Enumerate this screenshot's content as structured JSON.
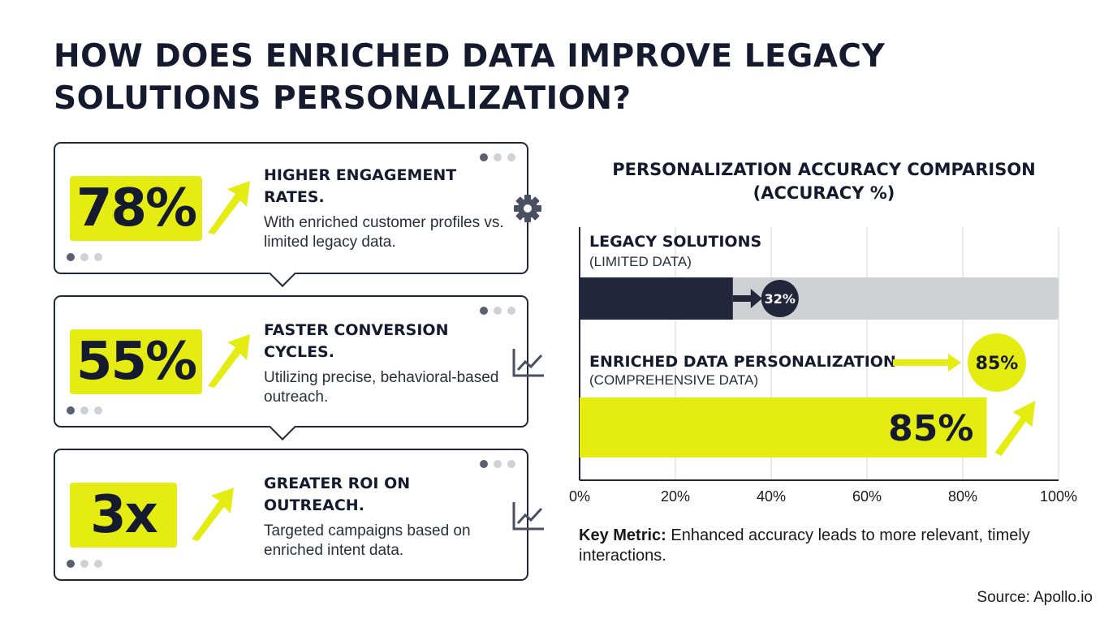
{
  "title": "HOW DOES ENRICHED DATA IMPROVE LEGACY SOLUTIONS PERSONALIZATION?",
  "colors": {
    "navy": "#22263a",
    "accent": "#e4ec12",
    "grey_bar": "#cfd0d4"
  },
  "cards": [
    {
      "value": "78%",
      "heading": "HIGHER ENGAGEMENT RATES.",
      "description": "With enriched customer profiles vs. limited legacy data.",
      "icon": "gear-icon"
    },
    {
      "value": "55%",
      "heading": "FASTER CONVERSION CYCLES.",
      "description": "Utilizing precise, behavioral-based outreach.",
      "icon": "line-chart-icon"
    },
    {
      "value": "3x",
      "heading": "GREATER ROI ON OUTREACH.",
      "description": "Targeted campaigns based on enriched intent data.",
      "icon": "line-chart-icon"
    }
  ],
  "chart_data": {
    "type": "bar",
    "orientation": "horizontal",
    "title": "PERSONALIZATION ACCURACY COMPARISON\n(ACCURACY %)",
    "xlim": [
      0,
      100
    ],
    "x_ticks": [
      "0%",
      "20%",
      "40%",
      "60%",
      "80%",
      "100%"
    ],
    "grid": true,
    "categories": [
      "LEGACY SOLUTIONS",
      "ENRICHED DATA PERSONALIZATION"
    ],
    "subtitles": [
      "(LIMITED DATA)",
      "(COMPREHENSIVE DATA)"
    ],
    "values": [
      32,
      85
    ],
    "data_labels": [
      "32%",
      "85%"
    ],
    "callout_label": "85%"
  },
  "key_metric": {
    "label": "Key Metric:",
    "text": " Enhanced accuracy leads to more relevant, timely interactions."
  },
  "source": "Source: Apollo.io"
}
